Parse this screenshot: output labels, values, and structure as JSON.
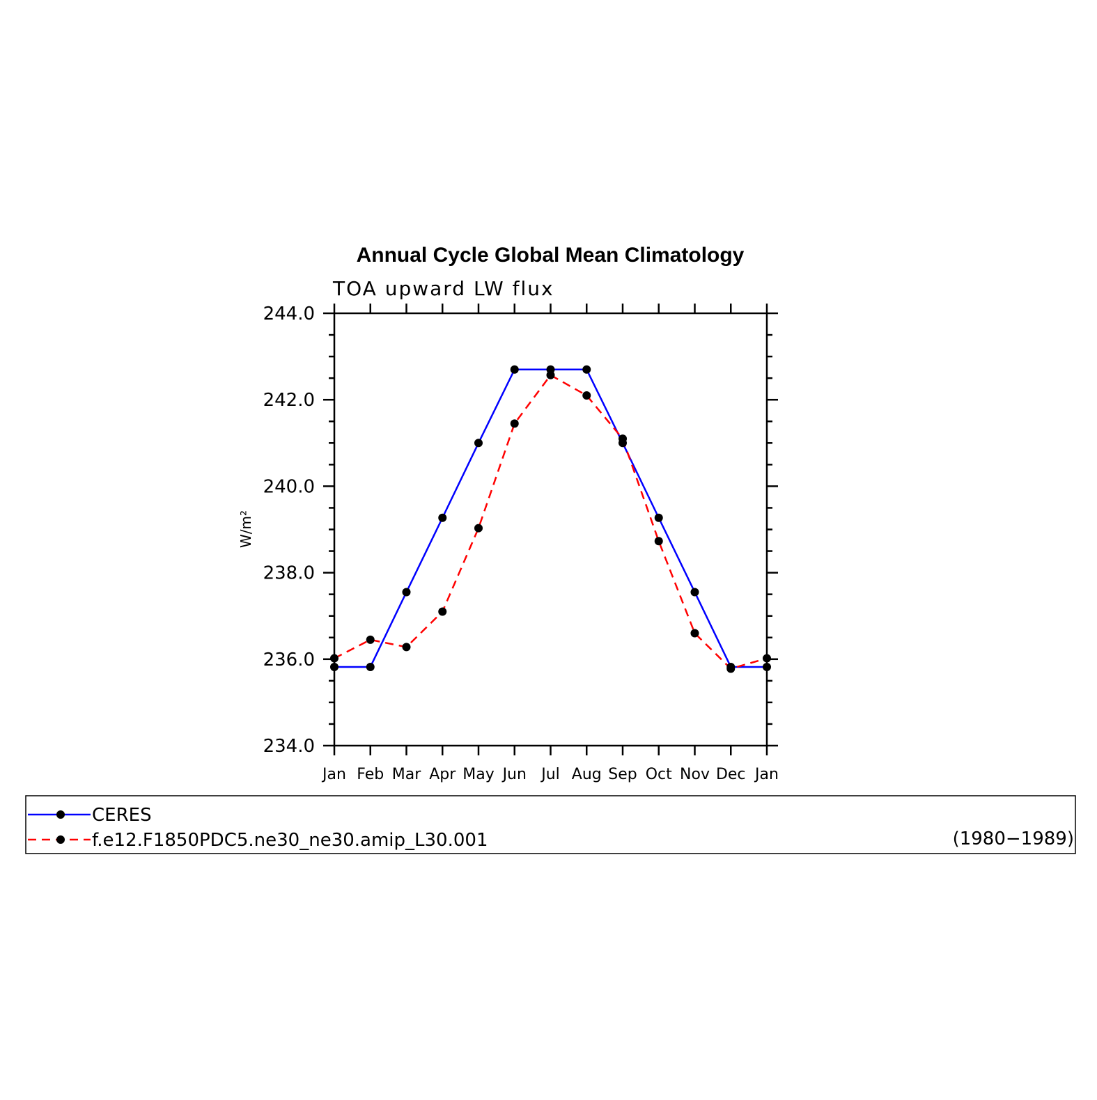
{
  "chart_data": {
    "type": "line",
    "title": "Annual Cycle Global Mean Climatology",
    "subtitle": "TOA upward LW flux",
    "xlabel": "",
    "ylabel": "W/m²",
    "categories": [
      "Jan",
      "Feb",
      "Mar",
      "Apr",
      "May",
      "Jun",
      "Jul",
      "Aug",
      "Sep",
      "Oct",
      "Nov",
      "Dec",
      "Jan"
    ],
    "ylim": [
      234.0,
      244.0
    ],
    "yticks": [
      "234.0",
      "236.0",
      "238.0",
      "240.0",
      "242.0",
      "244.0"
    ],
    "grid": false,
    "legend_position": "bottom",
    "series": [
      {
        "name": "CERES",
        "color": "#0000ff",
        "line_style": "solid",
        "marker": "filled-circle",
        "values": [
          235.82,
          235.82,
          237.55,
          239.27,
          241.0,
          242.7,
          242.7,
          242.7,
          241.0,
          239.27,
          237.55,
          235.82,
          235.82
        ]
      },
      {
        "name": "f.e12.F1850PDC5.ne30_ne30.amip_L30.001",
        "color": "#ff0000",
        "line_style": "dashed",
        "marker": "filled-circle",
        "values": [
          236.02,
          236.45,
          236.28,
          237.1,
          239.03,
          241.45,
          242.57,
          242.1,
          241.1,
          238.73,
          236.6,
          235.78,
          236.02
        ]
      }
    ],
    "legend_note": "(1980−1989)"
  }
}
